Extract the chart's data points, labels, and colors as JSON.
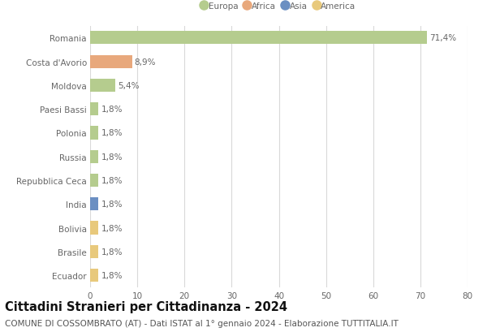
{
  "countries": [
    "Romania",
    "Costa d'Avorio",
    "Moldova",
    "Paesi Bassi",
    "Polonia",
    "Russia",
    "Repubblica Ceca",
    "India",
    "Bolivia",
    "Brasile",
    "Ecuador"
  ],
  "values": [
    71.4,
    8.9,
    5.4,
    1.8,
    1.8,
    1.8,
    1.8,
    1.8,
    1.8,
    1.8,
    1.8
  ],
  "labels": [
    "71,4%",
    "8,9%",
    "5,4%",
    "1,8%",
    "1,8%",
    "1,8%",
    "1,8%",
    "1,8%",
    "1,8%",
    "1,8%",
    "1,8%"
  ],
  "colors": [
    "#b5cc8e",
    "#e8a87c",
    "#b5cc8e",
    "#b5cc8e",
    "#b5cc8e",
    "#b5cc8e",
    "#b5cc8e",
    "#6b8fc2",
    "#e8c97c",
    "#e8c97c",
    "#e8c97c"
  ],
  "legend_labels": [
    "Europa",
    "Africa",
    "Asia",
    "America"
  ],
  "legend_colors": [
    "#b5cc8e",
    "#e8a87c",
    "#6b8fc2",
    "#e8c97c"
  ],
  "title": "Cittadini Stranieri per Cittadinanza - 2024",
  "subtitle": "COMUNE DI COSSOMBRATO (AT) - Dati ISTAT al 1° gennaio 2024 - Elaborazione TUTTITALIA.IT",
  "xlim": [
    0,
    80
  ],
  "xticks": [
    0,
    10,
    20,
    30,
    40,
    50,
    60,
    70,
    80
  ],
  "background_color": "#ffffff",
  "grid_color": "#d9d9d9",
  "bar_height": 0.55,
  "label_fontsize": 7.5,
  "tick_fontsize": 7.5,
  "title_fontsize": 10.5,
  "subtitle_fontsize": 7.5
}
